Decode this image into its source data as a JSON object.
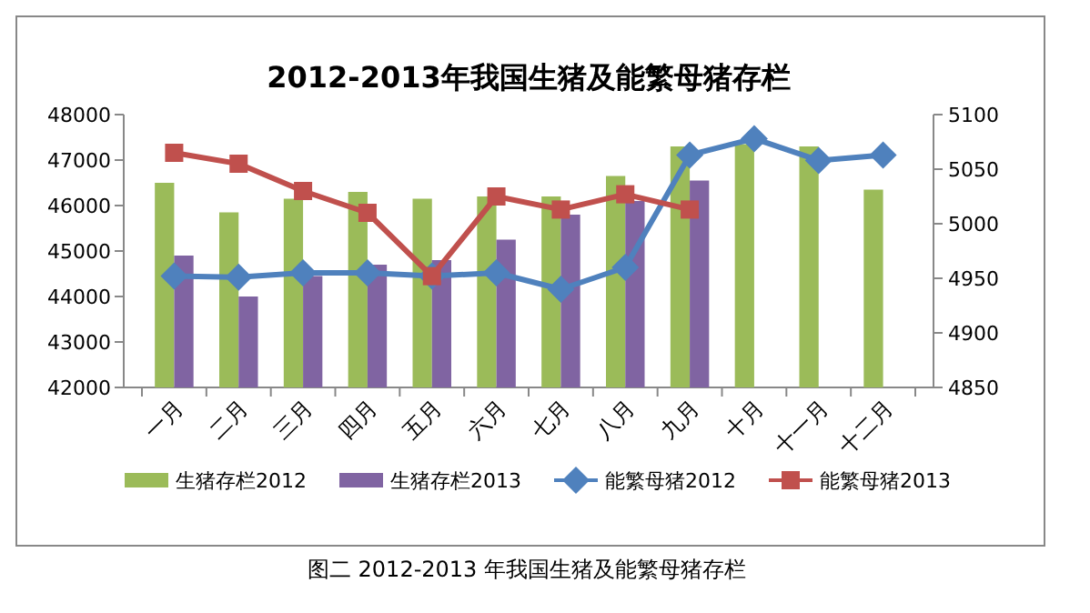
{
  "chart_data": {
    "type": "bar",
    "title": "2012-2013年我国生猪及能繁母猪存栏",
    "categories": [
      "一月",
      "二月",
      "三月",
      "四月",
      "五月",
      "六月",
      "七月",
      "八月",
      "九月",
      "十月",
      "十一月",
      "十二月"
    ],
    "series": [
      {
        "name": "生猪存栏2012",
        "color": "#9bbb59",
        "values": [
          46500,
          45850,
          46150,
          46300,
          46150,
          46200,
          46200,
          46650,
          47300,
          47350,
          47300,
          46350
        ]
      },
      {
        "name": "生猪存栏2013",
        "color": "#8064a2",
        "values": [
          44900,
          44000,
          44450,
          44700,
          44800,
          45250,
          45800,
          46100,
          46550,
          null,
          null,
          null
        ]
      },
      {
        "name": "能繁母猪2012",
        "type": "line",
        "axis": "y2",
        "marker": "diamond",
        "color": "#4f81bd",
        "values": [
          4952,
          4951,
          4955,
          4955,
          4952,
          4955,
          4940,
          4960,
          5063,
          5078,
          5058,
          5063
        ]
      },
      {
        "name": "能繁母猪2013",
        "type": "line",
        "axis": "y2",
        "marker": "square",
        "color": "#c0504d",
        "values": [
          5065,
          5055,
          5030,
          5010,
          4952,
          5025,
          5013,
          5027,
          5013,
          null,
          null,
          null
        ]
      }
    ],
    "ylim": [
      42000,
      48000
    ],
    "yticks": [
      42000,
      43000,
      44000,
      45000,
      46000,
      47000,
      48000
    ],
    "y2lim": [
      4850,
      5100
    ],
    "y2ticks": [
      4850,
      4900,
      4950,
      5000,
      5050,
      5100
    ],
    "legend": "bottom",
    "annotations": [
      "图二 2012-2013 年我国生猪及能繁母猪存栏"
    ]
  }
}
